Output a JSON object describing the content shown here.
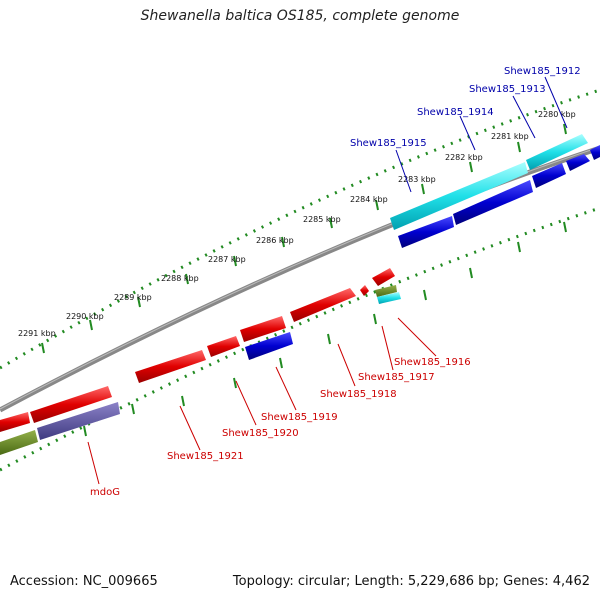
{
  "title": "Shewanella baltica OS185, complete genome",
  "footer": {
    "accession": "Accession: NC_009665",
    "summary": "Topology: circular; Length: 5,229,686 bp; Genes: 4,462"
  },
  "scale_ticks": [
    "2280 kbp",
    "2281 kbp",
    "2282 kbp",
    "2283 kbp",
    "2284 kbp",
    "2285 kbp",
    "2286 kbp",
    "2287 kbp",
    "2288 kbp",
    "2289 kbp",
    "2290 kbp",
    "2291 kbp"
  ],
  "genes_top": [
    "Shew185_1912",
    "Shew185_1913",
    "Shew185_1914",
    "Shew185_1915"
  ],
  "genes_bottom": [
    "Shew185_1916",
    "Shew185_1917",
    "Shew185_1918",
    "Shew185_1919",
    "Shew185_1920",
    "Shew185_1921",
    "mdoG"
  ],
  "colors": {
    "forward_cds": "#e00000",
    "reverse_cds": "#0000cc",
    "rna": "#00e0e0",
    "top_label": "#0000aa",
    "bottom_label": "#cc0000",
    "mdoG_label": "#cc0000",
    "backbone": "#808080",
    "dots": "#228b22"
  }
}
